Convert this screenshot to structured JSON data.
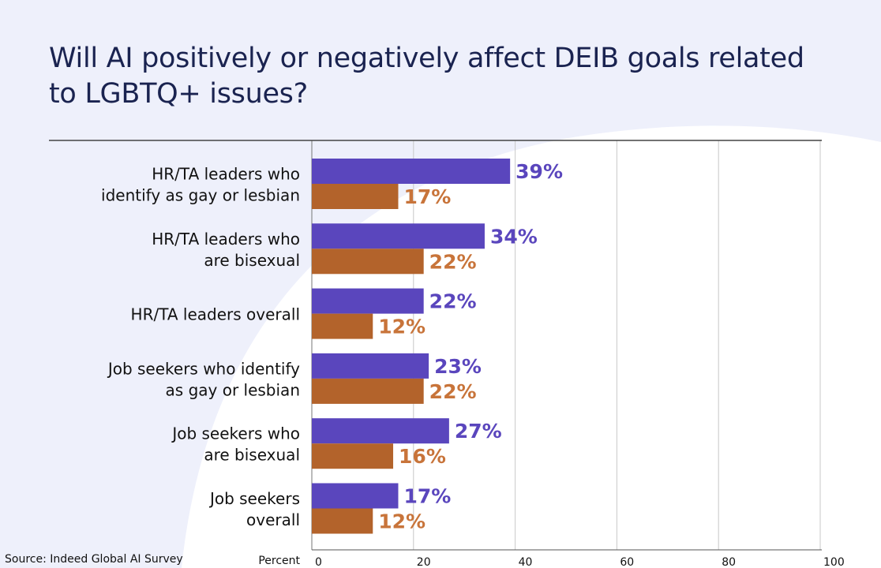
{
  "title": "Will AI positively or negatively affect DEIB goals related to LGBTQ+ issues?",
  "source": "Source: Indeed Global AI Survey",
  "colors": {
    "title": "#1a2350",
    "positive_bar": "#5a46bd",
    "negative_bar": "#b3632b",
    "positive_label": "#5a46bd",
    "negative_label": "#c8743a",
    "background_shape": "#eef0fb",
    "grid": "#c8c8c8",
    "axis": "#555555"
  },
  "chart_data": {
    "type": "bar",
    "orientation": "horizontal",
    "title": "Will AI positively or negatively affect DEIB goals related to LGBTQ+ issues?",
    "xlabel": "Percent",
    "ylabel": "",
    "xlim": [
      0,
      100
    ],
    "xticks": [
      0,
      20,
      40,
      60,
      80,
      100
    ],
    "grid": true,
    "legend": "none",
    "categories": [
      [
        "HR/TA leaders who",
        "identify as gay or lesbian"
      ],
      [
        "HR/TA leaders who",
        "are bisexual"
      ],
      [
        "HR/TA leaders overall"
      ],
      [
        "Job seekers who identify",
        "as gay or lesbian"
      ],
      [
        "Job seekers who",
        "are bisexual"
      ],
      [
        "Job seekers",
        "overall"
      ]
    ],
    "series": [
      {
        "values": [
          39,
          34,
          22,
          23,
          27,
          17
        ],
        "labels": [
          "39%",
          "34%",
          "22%",
          "23%",
          "27%",
          "17%"
        ],
        "color": "#5a46bd"
      },
      {
        "values": [
          17,
          22,
          12,
          22,
          16,
          12
        ],
        "labels": [
          "17%",
          "22%",
          "12%",
          "22%",
          "16%",
          "12%"
        ],
        "color": "#b3632b"
      }
    ]
  }
}
